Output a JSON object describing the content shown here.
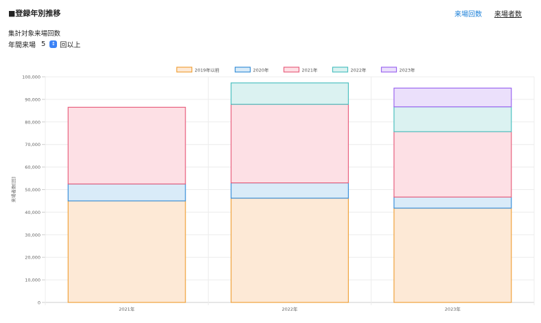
{
  "page": {
    "title": "■登録年別推移"
  },
  "tabs": [
    {
      "label": "来場回数",
      "active": true
    },
    {
      "label": "来場者数",
      "active": false
    }
  ],
  "filter": {
    "section_label": "集計対象来場回数",
    "prefix": "年間来場",
    "value": "5",
    "suffix": "回以上"
  },
  "colors": {
    "accent": "#1a7fd8",
    "series_stroke": [
      "#f0a23c",
      "#3a8fd8",
      "#e8607e",
      "#4cc0c0",
      "#9b66f0"
    ],
    "series_fill": [
      "#fde9d6",
      "#d9ebf8",
      "#fde0e5",
      "#dbf2f1",
      "#ebe0fb"
    ]
  },
  "chart_data": {
    "type": "bar",
    "stacked": true,
    "categories": [
      "2021年",
      "2022年",
      "2023年"
    ],
    "series": [
      {
        "name": "2019年以前",
        "values": [
          45000,
          46200,
          41800
        ]
      },
      {
        "name": "2020年",
        "values": [
          7500,
          6800,
          4900
        ]
      },
      {
        "name": "2021年",
        "values": [
          34000,
          34800,
          29000
        ]
      },
      {
        "name": "2022年",
        "values": [
          0,
          9500,
          11000
        ]
      },
      {
        "name": "2023年",
        "values": [
          0,
          0,
          8300
        ]
      }
    ],
    "ylabel": "来場者数[回]",
    "ylim": [
      0,
      100000
    ],
    "yticks": [
      "0",
      "10,000",
      "20,000",
      "30,000",
      "40,000",
      "50,000",
      "60,000",
      "70,000",
      "80,000",
      "90,000",
      "100,000"
    ],
    "grid": true,
    "legend_position": "top"
  }
}
